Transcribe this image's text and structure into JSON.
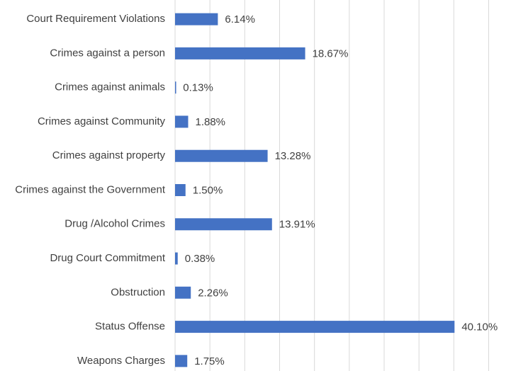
{
  "chart_data": {
    "type": "barh",
    "categories": [
      "Court Requirement Violations",
      "Crimes against a person",
      "Crimes against animals",
      "Crimes against Community",
      "Crimes against property",
      "Crimes against the Government",
      "Drug /Alcohol Crimes",
      "Drug Court Commitment",
      "Obstruction",
      "Status Offense",
      "Weapons Charges"
    ],
    "values": [
      6.14,
      18.67,
      0.13,
      1.88,
      13.28,
      1.5,
      13.91,
      0.38,
      2.26,
      40.1,
      1.75
    ],
    "value_labels": [
      "6.14%",
      "18.67%",
      "0.13%",
      "1.88%",
      "13.28%",
      "1.50%",
      "13.91%",
      "0.38%",
      "2.26%",
      "40.10%",
      "1.75%"
    ],
    "color": "#4472c4",
    "xlim": [
      0,
      48
    ],
    "xticks": [
      0,
      5,
      10,
      15,
      20,
      25,
      30,
      35,
      40,
      45
    ],
    "grid": true
  }
}
